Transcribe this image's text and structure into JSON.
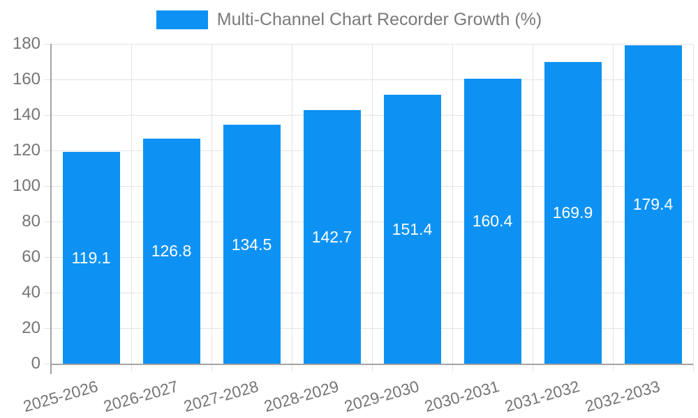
{
  "legend": {
    "label": "Multi-Channel Chart Recorder Growth (%)"
  },
  "chart_data": {
    "type": "bar",
    "title": "Multi-Channel Chart Recorder Growth (%)",
    "categories": [
      "2025-2026",
      "2026-2027",
      "2027-2028",
      "2028-2029",
      "2029-2030",
      "2030-2031",
      "2031-2032",
      "2032-2033"
    ],
    "values": [
      119.1,
      126.8,
      134.5,
      142.7,
      151.4,
      160.4,
      169.9,
      179.4
    ],
    "value_labels": [
      "119.1",
      "126.8",
      "134.5",
      "142.7",
      "151.4",
      "160.4",
      "169.9",
      "179.4"
    ],
    "yticks": [
      0,
      20,
      40,
      60,
      80,
      100,
      120,
      140,
      160,
      180
    ],
    "ylim": [
      0,
      180
    ],
    "xlabel": "",
    "ylabel": "",
    "grid": true,
    "legend_position": "top",
    "colors": {
      "bar": "#0d92f4",
      "value_label": "#ffffff",
      "grid": "#e3e3e3",
      "axis": "#a3a3a3",
      "tick_label": "#757575",
      "legend_text": "#7a7a7a"
    }
  }
}
